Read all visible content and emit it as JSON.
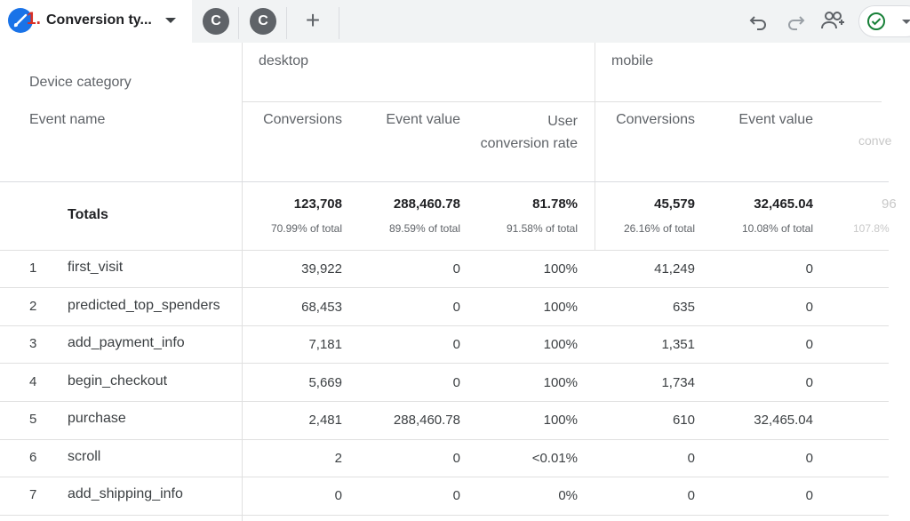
{
  "tabs": {
    "active": {
      "number": "1.",
      "title": "Conversion ty..."
    },
    "others": [
      {
        "initial": "C"
      },
      {
        "initial": "C"
      }
    ],
    "add_label": "+"
  },
  "toolbar": {
    "icons": [
      "undo-icon",
      "redo-icon",
      "share-users-icon",
      "check-circle-icon",
      "chevron-down-icon"
    ],
    "colors": {
      "check": "#188038",
      "tab_icon": "#1a73e8",
      "tab_number": "#d93025"
    }
  },
  "table": {
    "dimension_header": "Device category",
    "row_header": "Event name",
    "groups": [
      {
        "label": "desktop",
        "metrics": [
          "Conversions",
          "Event value",
          "User conversion rate"
        ],
        "totals": [
          {
            "value": "123,708",
            "pct": "70.99% of total"
          },
          {
            "value": "288,460.78",
            "pct": "89.59% of total"
          },
          {
            "value": "81.78%",
            "pct": "91.58% of total"
          }
        ]
      },
      {
        "label": "mobile",
        "metrics": [
          "Conversions",
          "Event value",
          "conve"
        ],
        "totals": [
          {
            "value": "45,579",
            "pct": "26.16% of total"
          },
          {
            "value": "32,465.04",
            "pct": "10.08% of total"
          },
          {
            "value": "96",
            "pct": "107.8%"
          }
        ]
      }
    ],
    "totals_label": "Totals",
    "rows": [
      {
        "index": "1",
        "name": "first_visit",
        "values": [
          "39,922",
          "0",
          "100%",
          "41,249",
          "0"
        ]
      },
      {
        "index": "2",
        "name": "predicted_top_spenders",
        "values": [
          "68,453",
          "0",
          "100%",
          "635",
          "0"
        ]
      },
      {
        "index": "3",
        "name": "add_payment_info",
        "values": [
          "7,181",
          "0",
          "100%",
          "1,351",
          "0"
        ]
      },
      {
        "index": "4",
        "name": "begin_checkout",
        "values": [
          "5,669",
          "0",
          "100%",
          "1,734",
          "0"
        ]
      },
      {
        "index": "5",
        "name": "purchase",
        "values": [
          "2,481",
          "288,460.78",
          "100%",
          "610",
          "32,465.04"
        ]
      },
      {
        "index": "6",
        "name": "scroll",
        "values": [
          "2",
          "0",
          "<0.01%",
          "0",
          "0"
        ]
      },
      {
        "index": "7",
        "name": "add_shipping_info",
        "values": [
          "0",
          "0",
          "0%",
          "0",
          "0"
        ]
      }
    ]
  }
}
